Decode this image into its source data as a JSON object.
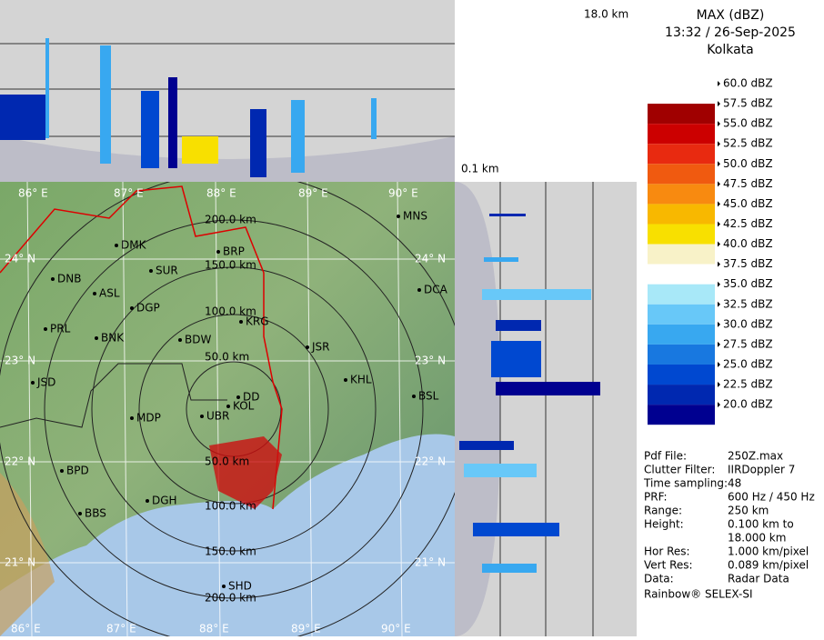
{
  "header": {
    "product": "MAX (dBZ)",
    "datetime": "13:32 / 26-Sep-2025",
    "station": "Kolkata"
  },
  "heights": {
    "top": "18.0 km",
    "bottom": "0.1 km"
  },
  "legend": {
    "levels": [
      "60.0 dBZ",
      "57.5 dBZ",
      "55.0 dBZ",
      "52.5 dBZ",
      "50.0 dBZ",
      "47.5 dBZ",
      "45.0 dBZ",
      "42.5 dBZ",
      "40.0 dBZ",
      "37.5 dBZ",
      "35.0 dBZ",
      "32.5 dBZ",
      "30.0 dBZ",
      "27.5 dBZ",
      "25.0 dBZ",
      "22.5 dBZ",
      "20.0 dBZ"
    ],
    "colors": [
      "#ffffff00",
      "#a00000",
      "#cc0000",
      "#e82a10",
      "#f05a10",
      "#f88a10",
      "#f8b800",
      "#f8e000",
      "#f8f2c8",
      "#ffffff",
      "#a8e8f8",
      "#68c8f8",
      "#38a8f0",
      "#1878e0",
      "#0048d0",
      "#0028b0",
      "#000090"
    ]
  },
  "info": [
    [
      "Pdf File:",
      "250Z.max"
    ],
    [
      "Clutter Filter:",
      "IIRDoppler 7"
    ],
    [
      "Time sampling:",
      "48"
    ],
    [
      "PRF:",
      "600 Hz / 450 Hz"
    ],
    [
      "Range:",
      "250 km"
    ],
    [
      "Height:",
      "0.100 km to"
    ],
    [
      "",
      "18.000 km"
    ],
    [
      "Hor Res:",
      "1.000 km/pixel"
    ],
    [
      "Vert Res:",
      "0.089 km/pixel"
    ],
    [
      "Data:",
      "Radar Data"
    ]
  ],
  "footer": "Rainbow® SELEX-SI",
  "map": {
    "lon_labels": [
      "86° E",
      "87° E",
      "88° E",
      "89° E",
      "90° E"
    ],
    "lat_labels": [
      "24° N",
      "23° N",
      "22° N",
      "21° N"
    ],
    "range_labels": [
      "50.0 km",
      "100.0 km",
      "150.0 km",
      "200.0 km"
    ],
    "cities": [
      "DMK",
      "BRP",
      "DNB",
      "SUR",
      "ASL",
      "DGP",
      "KRG",
      "PRL",
      "BNK",
      "BDW",
      "JSR",
      "KHL",
      "JSD",
      "DD",
      "KOL",
      "UBR",
      "MDP",
      "BSL",
      "MNS",
      "DCA",
      "BPD",
      "DGH",
      "BBS",
      "SHD"
    ]
  }
}
